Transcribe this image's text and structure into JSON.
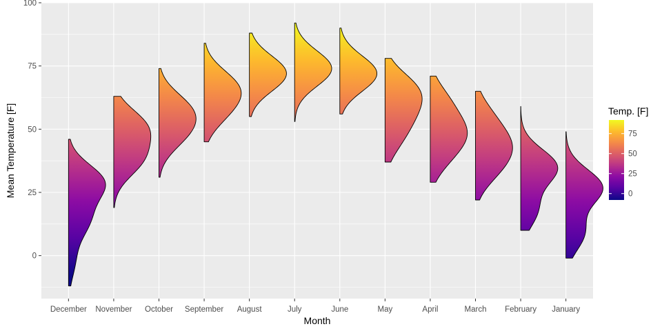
{
  "chart_data": {
    "type": "ridgeline-half-violin",
    "xlabel": "Month",
    "ylabel": "Mean Temperature [F]",
    "ylim": [
      -17,
      100
    ],
    "y_ticks": [
      0,
      25,
      50,
      75,
      100
    ],
    "categories": [
      "December",
      "November",
      "October",
      "September",
      "August",
      "July",
      "June",
      "May",
      "April",
      "March",
      "February",
      "January"
    ],
    "series": [
      {
        "name": "December",
        "min": -12,
        "max": 46,
        "peaks": [
          [
            29,
            1.0
          ],
          [
            14,
            0.55
          ],
          [
            -2,
            0.18
          ]
        ]
      },
      {
        "name": "November",
        "min": 19,
        "max": 63,
        "peaks": [
          [
            51,
            1.0
          ],
          [
            38,
            0.85
          ]
        ]
      },
      {
        "name": "October",
        "min": 31,
        "max": 74,
        "peaks": [
          [
            58,
            1.0
          ],
          [
            48,
            0.8
          ]
        ]
      },
      {
        "name": "September",
        "min": 45,
        "max": 84,
        "peaks": [
          [
            67,
            1.0
          ],
          [
            57,
            0.62
          ]
        ]
      },
      {
        "name": "August",
        "min": 55,
        "max": 88,
        "peaks": [
          [
            72,
            1.0
          ]
        ]
      },
      {
        "name": "July",
        "min": 53,
        "max": 92,
        "peaks": [
          [
            74,
            1.0
          ]
        ]
      },
      {
        "name": "June",
        "min": 56,
        "max": 90,
        "peaks": [
          [
            72,
            1.0
          ]
        ]
      },
      {
        "name": "May",
        "min": 37,
        "max": 78,
        "peaks": [
          [
            66,
            1.0
          ],
          [
            56,
            0.7
          ],
          [
            46,
            0.45
          ]
        ]
      },
      {
        "name": "April",
        "min": 29,
        "max": 71,
        "peaks": [
          [
            49,
            1.0
          ],
          [
            61,
            0.55
          ],
          [
            39,
            0.5
          ]
        ]
      },
      {
        "name": "March",
        "min": 22,
        "max": 65,
        "peaks": [
          [
            44,
            1.0
          ],
          [
            34,
            0.65
          ],
          [
            55,
            0.5
          ]
        ]
      },
      {
        "name": "February",
        "min": 10,
        "max": 59,
        "peaks": [
          [
            35,
            1.0
          ],
          [
            18,
            0.45
          ]
        ]
      },
      {
        "name": "January",
        "min": -1,
        "max": 49,
        "peaks": [
          [
            27,
            1.0
          ],
          [
            9,
            0.5
          ]
        ]
      }
    ],
    "legend": {
      "title": "Temp. [F]",
      "ticks": [
        0,
        25,
        50,
        75
      ],
      "range": [
        -8,
        92
      ],
      "colormap": "plasma",
      "placement": "right"
    },
    "grid": true,
    "background": "#ebebeb"
  }
}
